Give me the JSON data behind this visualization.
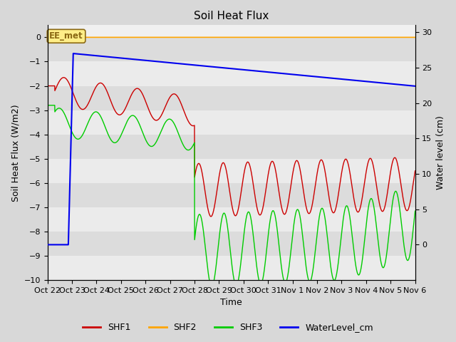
{
  "title": "Soil Heat Flux",
  "xlabel": "Time",
  "ylabel_left": "Soil Heat Flux (W/m2)",
  "ylabel_right": "Water level (cm)",
  "ylim_left": [
    -10.0,
    0.5
  ],
  "ylim_right": [
    -5,
    31
  ],
  "yticks_left": [
    0.0,
    -1.0,
    -2.0,
    -3.0,
    -4.0,
    -5.0,
    -6.0,
    -7.0,
    -8.0,
    -9.0,
    -10.0
  ],
  "yticks_right": [
    0,
    5,
    10,
    15,
    20,
    25,
    30
  ],
  "xtick_labels": [
    "Oct 22",
    "Oct 23",
    "Oct 24",
    "Oct 25",
    "Oct 26",
    "Oct 27",
    "Oct 28",
    "Oct 29",
    "Oct 30",
    "Oct 31",
    "Nov 1",
    "Nov 2",
    "Nov 3",
    "Nov 4",
    "Nov 5",
    "Nov 6"
  ],
  "annotation_text": "EE_met",
  "annotation_color": "#8B6914",
  "annotation_bg": "#FFEE88",
  "shf2_color": "#FFA500",
  "shf1_color": "#CC0000",
  "shf3_color": "#00CC00",
  "water_color": "#0000EE",
  "bg_color": "#D8D8D8",
  "plot_bg_light": "#F0F0F0",
  "plot_bg_dark": "#E0E0E0",
  "title_fontsize": 11,
  "axis_fontsize": 9,
  "tick_fontsize": 8,
  "legend_fontsize": 9
}
